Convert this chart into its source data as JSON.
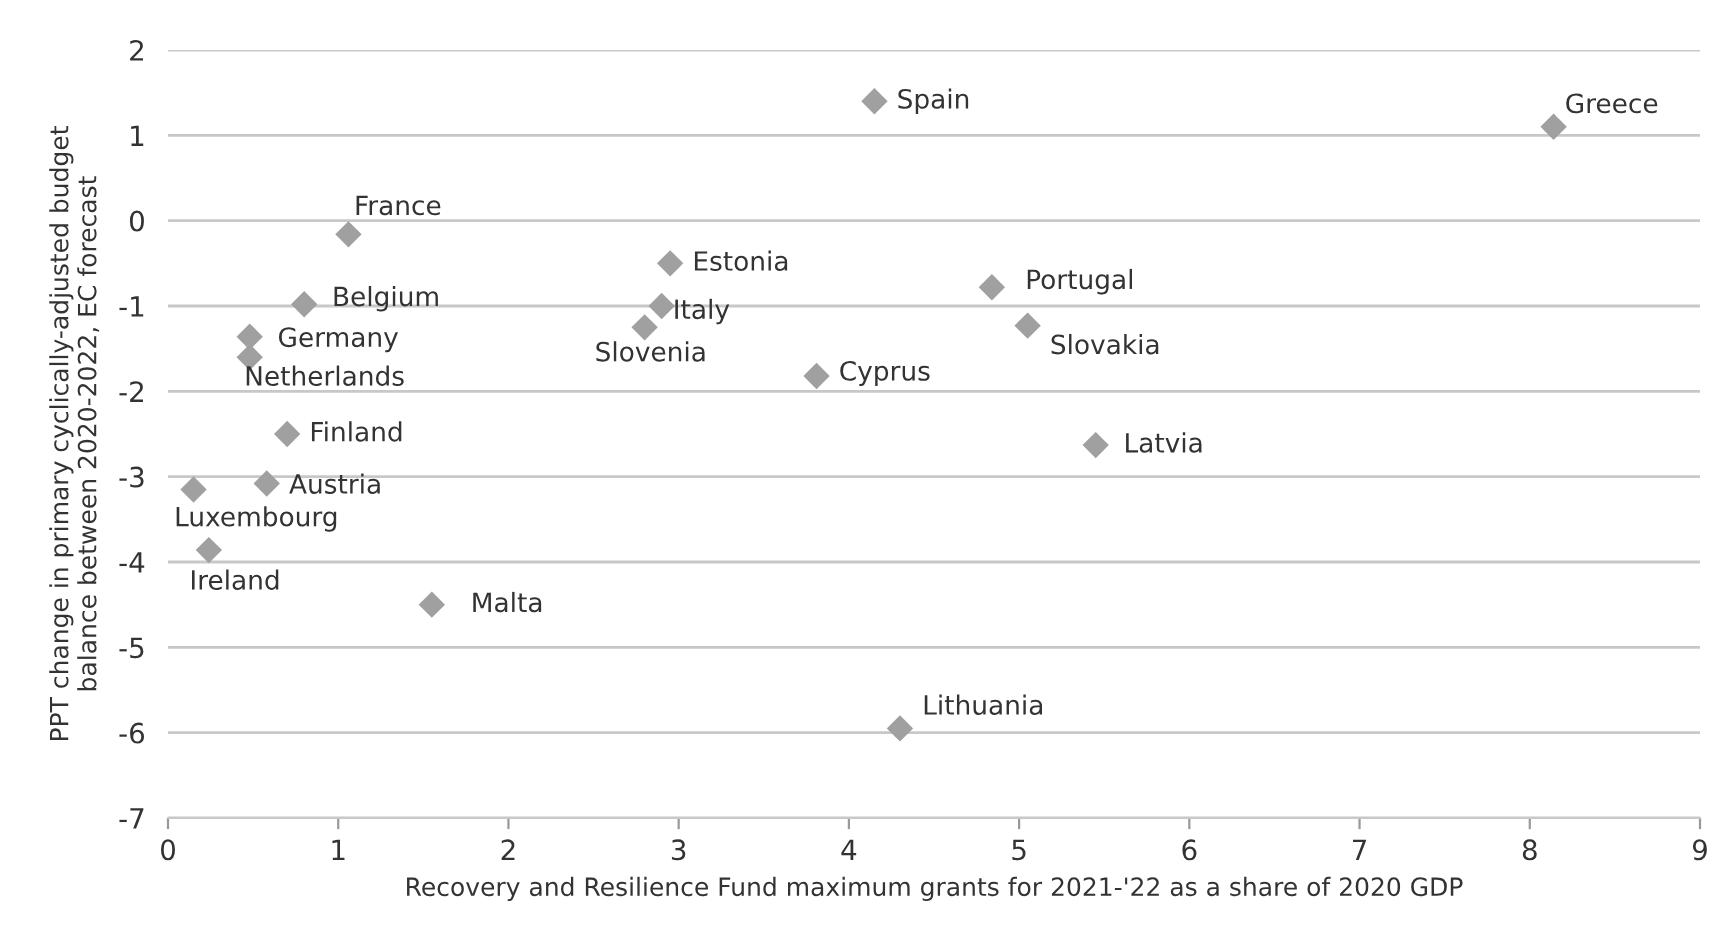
{
  "chart_data": {
    "type": "scatter",
    "xlabel": "Recovery and Resilience Fund maximum grants for 2021-'22 as a share of 2020 GDP",
    "ylabel": "PPT change in primary cyclically-adjusted budget\nbalance between 2020-2022, EC forecast",
    "xlim": [
      0,
      9
    ],
    "xticks": [
      0,
      1,
      2,
      3,
      4,
      5,
      6,
      7,
      8,
      9
    ],
    "ylim": [
      -7,
      2
    ],
    "yticks": [
      -7,
      -6,
      -5,
      -4,
      -3,
      -2,
      -1,
      0,
      1,
      2
    ],
    "grid": "y",
    "legend": false,
    "marker": "diamond",
    "series": [
      {
        "color": "#a0a0a0",
        "x": [
          4.15,
          8.14,
          1.06,
          0.8,
          0.48,
          0.48,
          0.7,
          0.58,
          0.15,
          0.24,
          1.55,
          2.95,
          2.9,
          2.8,
          3.81,
          4.84,
          5.05,
          5.45,
          4.3
        ],
        "values": [
          1.4,
          1.1,
          -0.16,
          -0.98,
          -1.36,
          -1.6,
          -2.5,
          -3.08,
          -3.15,
          -3.86,
          -4.5,
          -0.5,
          -1.0,
          -1.25,
          -1.82,
          -0.78,
          -1.23,
          -2.63,
          -5.95
        ]
      }
    ],
    "annotations": [
      {
        "text": "Spain",
        "x": 4.15,
        "y": 1.4
      },
      {
        "text": "Greece",
        "x": 8.14,
        "y": 1.1
      },
      {
        "text": "France",
        "x": 1.06,
        "y": -0.16
      },
      {
        "text": "Belgium",
        "x": 0.8,
        "y": -0.98
      },
      {
        "text": "Germany",
        "x": 0.48,
        "y": -1.36
      },
      {
        "text": "Netherlands",
        "x": 0.48,
        "y": -1.6
      },
      {
        "text": "Finland",
        "x": 0.7,
        "y": -2.5
      },
      {
        "text": "Austria",
        "x": 0.58,
        "y": -3.08
      },
      {
        "text": "Luxembourg",
        "x": 0.15,
        "y": -3.15
      },
      {
        "text": "Ireland",
        "x": 0.24,
        "y": -3.86
      },
      {
        "text": "Malta",
        "x": 1.55,
        "y": -4.5
      },
      {
        "text": "Estonia",
        "x": 2.95,
        "y": -0.5
      },
      {
        "text": "Italy",
        "x": 2.9,
        "y": -1.0
      },
      {
        "text": "Slovenia",
        "x": 2.8,
        "y": -1.25
      },
      {
        "text": "Cyprus",
        "x": 3.81,
        "y": -1.82
      },
      {
        "text": "Portugal",
        "x": 4.84,
        "y": -0.78
      },
      {
        "text": "Slovakia",
        "x": 5.05,
        "y": -1.23
      },
      {
        "text": "Latvia",
        "x": 5.45,
        "y": -2.63
      },
      {
        "text": "Lithuania",
        "x": 4.3,
        "y": -5.95
      }
    ]
  }
}
